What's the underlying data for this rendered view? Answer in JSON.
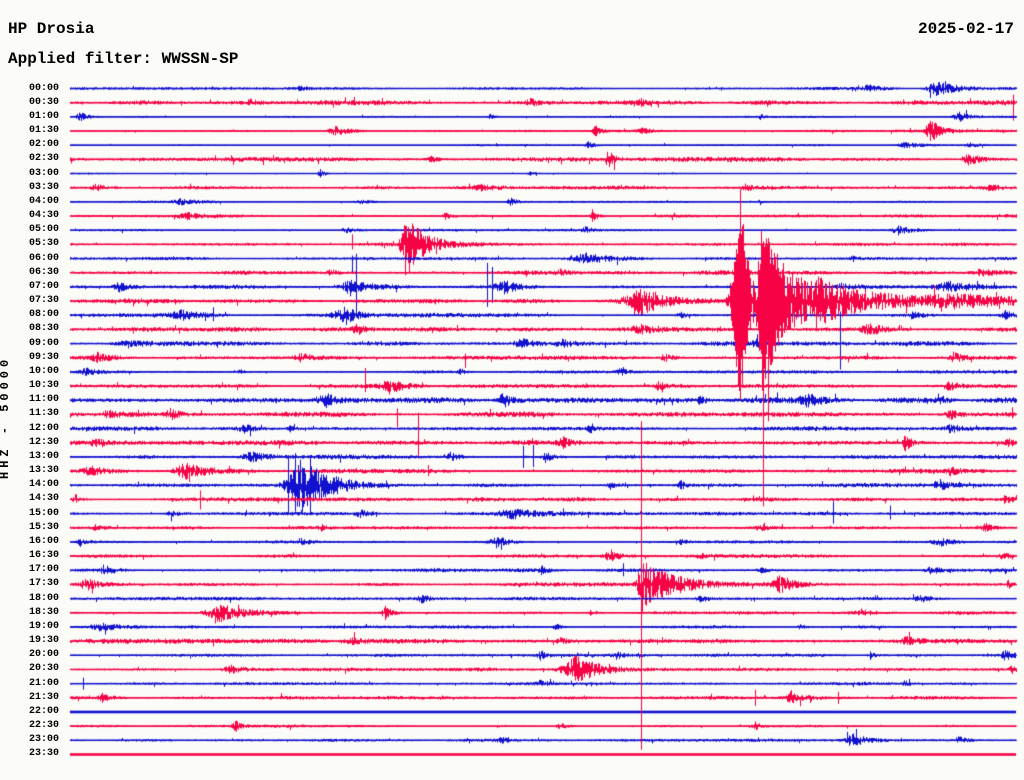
{
  "header": {
    "station": "HP Drosia",
    "date": "2025-02-17",
    "filter_label": "Applied filter: WWSSN-SP"
  },
  "y_axis_label": "HHZ - 50000",
  "colors": {
    "trace_blue": "#1111cf",
    "trace_red": "#f70345",
    "background": "#fbfbf8",
    "text": "#000000"
  },
  "chart_data": {
    "type": "line",
    "subtype": "helicorder-seismogram",
    "station": "HP Drosia",
    "date": "2025-02-17",
    "filter": "WWSSN-SP",
    "channel_scale": "HHZ - 50000",
    "minutes_per_line": 30,
    "line_color_rule": "lines starting on the hour are blue, half-hour lines are red",
    "rows": [
      {
        "time": "00:00",
        "c": "b",
        "b": 1.1,
        "e": [
          [
            300,
            6,
            2
          ],
          [
            868,
            14,
            3
          ],
          [
            935,
            18,
            8,
            22
          ]
        ]
      },
      {
        "time": "00:30",
        "c": "r",
        "b": 1.9,
        "e": [
          [
            250,
            8,
            2.5
          ],
          [
            530,
            10,
            3
          ],
          [
            640,
            6,
            2.5
          ]
        ],
        "s": [
          [
            1013,
            8,
            18
          ]
        ]
      },
      {
        "time": "01:00",
        "c": "b",
        "b": 0.8,
        "e": [
          [
            80,
            9,
            5
          ],
          [
            490,
            6,
            3
          ],
          [
            760,
            4,
            2.5
          ],
          [
            958,
            10,
            5
          ]
        ]
      },
      {
        "time": "01:30",
        "c": "r",
        "b": 1.1,
        "e": [
          [
            335,
            14,
            5,
            14
          ],
          [
            595,
            5,
            7
          ],
          [
            642,
            10,
            2.5
          ],
          [
            930,
            10,
            12,
            9
          ]
        ]
      },
      {
        "time": "02:00",
        "c": "b",
        "b": 0.8,
        "e": [
          [
            588,
            6,
            4
          ],
          [
            905,
            16,
            2.5
          ],
          [
            970,
            10,
            2
          ]
        ]
      },
      {
        "time": "02:30",
        "c": "r",
        "b": 1.7,
        "e": [
          [
            430,
            8,
            3
          ],
          [
            608,
            6,
            9
          ],
          [
            968,
            10,
            7
          ]
        ]
      },
      {
        "time": "03:00",
        "c": "b",
        "b": 0.6,
        "e": [
          [
            320,
            4,
            6
          ],
          [
            530,
            5,
            2
          ]
        ]
      },
      {
        "time": "03:30",
        "c": "r",
        "b": 1.6,
        "e": [
          [
            95,
            10,
            3
          ],
          [
            480,
            14,
            2.5
          ],
          [
            745,
            5,
            4
          ],
          [
            990,
            18,
            3
          ]
        ]
      },
      {
        "time": "04:00",
        "c": "b",
        "b": 0.9,
        "e": [
          [
            180,
            18,
            2.5
          ],
          [
            360,
            14,
            2
          ],
          [
            510,
            8,
            4
          ],
          [
            760,
            4,
            3
          ]
        ]
      },
      {
        "time": "04:30",
        "c": "r",
        "b": 1.4,
        "e": [
          [
            185,
            16,
            3
          ],
          [
            445,
            6,
            3
          ],
          [
            592,
            5,
            6
          ]
        ]
      },
      {
        "time": "05:00",
        "c": "b",
        "b": 1.0,
        "e": [
          [
            345,
            10,
            3
          ],
          [
            585,
            8,
            3
          ],
          [
            898,
            14,
            4.5
          ]
        ]
      },
      {
        "time": "05:30",
        "c": "r",
        "b": 1.5,
        "e": [
          [
            405,
            9,
            34,
            16
          ]
        ],
        "s": [
          [
            352,
            10,
            5
          ]
        ]
      },
      {
        "time": "06:00",
        "c": "b",
        "b": 1.1,
        "e": [
          [
            585,
            28,
            5
          ],
          [
            852,
            4,
            3
          ]
        ],
        "s": [
          [
            352,
            3,
            14
          ]
        ]
      },
      {
        "time": "06:30",
        "c": "r",
        "b": 1.8,
        "e": [
          [
            330,
            6,
            3
          ],
          [
            560,
            10,
            3
          ],
          [
            980,
            14,
            3.5
          ]
        ]
      },
      {
        "time": "07:00",
        "c": "b",
        "b": 1.5,
        "e": [
          [
            118,
            10,
            5
          ],
          [
            350,
            20,
            8,
            14
          ],
          [
            505,
            22,
            7,
            12
          ],
          [
            840,
            10,
            3
          ],
          [
            950,
            35,
            5
          ]
        ],
        "s": [
          [
            356,
            33,
            30
          ],
          [
            487,
            24,
            20
          ],
          [
            492,
            20,
            16
          ]
        ]
      },
      {
        "time": "07:30",
        "c": "r",
        "b": 1.9,
        "e": [
          [
            640,
            30,
            15,
            22
          ],
          [
            740,
            16,
            115,
            8
          ],
          [
            762,
            10,
            85,
            26
          ],
          [
            815,
            25,
            16,
            65
          ],
          [
            950,
            60,
            4,
            80
          ]
        ]
      },
      {
        "time": "08:00",
        "c": "b",
        "b": 1.6,
        "e": [
          [
            180,
            20,
            4
          ],
          [
            345,
            22,
            8,
            10
          ],
          [
            680,
            8,
            3
          ],
          [
            912,
            10,
            3
          ],
          [
            1005,
            8,
            4
          ]
        ],
        "s": [
          [
            213,
            8,
            6
          ]
        ]
      },
      {
        "time": "08:30",
        "c": "r",
        "b": 1.8,
        "e": [
          [
            356,
            8,
            6
          ],
          [
            640,
            28,
            4
          ],
          [
            870,
            16,
            5
          ]
        ]
      },
      {
        "time": "09:00",
        "c": "b",
        "b": 1.7,
        "e": [
          [
            130,
            30,
            3
          ],
          [
            520,
            14,
            5
          ],
          [
            560,
            10,
            4
          ],
          [
            755,
            6,
            4
          ]
        ],
        "s": [
          [
            840,
            32,
            26
          ]
        ]
      },
      {
        "time": "09:30",
        "c": "r",
        "b": 1.5,
        "e": [
          [
            97,
            14,
            4
          ],
          [
            300,
            12,
            4
          ],
          [
            664,
            8,
            5
          ],
          [
            953,
            8,
            5
          ]
        ],
        "s": [
          [
            465,
            4,
            10
          ]
        ]
      },
      {
        "time": "10:00",
        "c": "b",
        "b": 1.3,
        "e": [
          [
            85,
            10,
            3
          ],
          [
            240,
            6,
            2
          ],
          [
            460,
            6,
            2.5
          ],
          [
            620,
            8,
            3
          ]
        ]
      },
      {
        "time": "10:30",
        "c": "r",
        "b": 1.5,
        "e": [
          [
            390,
            18,
            7,
            12
          ],
          [
            658,
            6,
            4
          ],
          [
            948,
            10,
            4
          ]
        ],
        "s": [
          [
            365,
            18,
            6
          ]
        ]
      },
      {
        "time": "11:00",
        "c": "b",
        "b": 2.3,
        "e": [
          [
            325,
            16,
            7
          ],
          [
            503,
            10,
            7
          ],
          [
            700,
            6,
            4
          ],
          [
            806,
            12,
            5
          ],
          [
            940,
            8,
            4
          ]
        ]
      },
      {
        "time": "11:30",
        "c": "r",
        "b": 2.0,
        "e": [
          [
            108,
            16,
            4
          ],
          [
            170,
            12,
            5
          ],
          [
            950,
            12,
            5
          ]
        ],
        "s": [
          [
            397,
            6,
            13
          ],
          [
            1012,
            7,
            4
          ]
        ]
      },
      {
        "time": "12:00",
        "c": "b",
        "b": 1.6,
        "e": [
          [
            243,
            10,
            4
          ],
          [
            290,
            6,
            3
          ],
          [
            590,
            5,
            5
          ],
          [
            950,
            10,
            4
          ]
        ]
      },
      {
        "time": "12:30",
        "c": "r",
        "b": 1.9,
        "e": [
          [
            95,
            8,
            4
          ],
          [
            562,
            8,
            5
          ],
          [
            905,
            6,
            9
          ],
          [
            1008,
            6,
            4
          ]
        ],
        "s": [
          [
            418,
            30,
            16
          ]
        ]
      },
      {
        "time": "13:00",
        "c": "b",
        "b": 1.8,
        "e": [
          [
            250,
            18,
            5
          ],
          [
            450,
            10,
            4
          ],
          [
            545,
            8,
            5
          ]
        ],
        "s": [
          [
            523,
            11,
            11
          ],
          [
            533,
            12,
            10
          ]
        ]
      },
      {
        "time": "13:30",
        "c": "r",
        "b": 1.6,
        "e": [
          [
            90,
            16,
            4
          ],
          [
            185,
            22,
            9,
            20
          ],
          [
            950,
            8,
            3
          ]
        ],
        "s": [
          [
            428,
            6,
            5
          ]
        ]
      },
      {
        "time": "14:00",
        "c": "b",
        "b": 1.7,
        "e": [
          [
            300,
            26,
            27,
            26
          ],
          [
            610,
            8,
            4
          ],
          [
            680,
            5,
            5
          ],
          [
            938,
            8,
            6
          ]
        ],
        "s": [
          [
            288,
            30,
            29
          ],
          [
            295,
            32,
            26
          ],
          [
            310,
            28,
            30
          ]
        ]
      },
      {
        "time": "14:30",
        "c": "r",
        "b": 1.5,
        "e": [
          [
            75,
            6,
            5
          ],
          [
            1005,
            6,
            5
          ]
        ],
        "s": [
          [
            200,
            9,
            10
          ]
        ]
      },
      {
        "time": "15:00",
        "c": "b",
        "b": 1.4,
        "e": [
          [
            170,
            10,
            3
          ],
          [
            360,
            12,
            4
          ],
          [
            512,
            28,
            5
          ]
        ],
        "s": [
          [
            833,
            12,
            10
          ],
          [
            890,
            8,
            6
          ]
        ]
      },
      {
        "time": "15:30",
        "c": "r",
        "b": 1.2,
        "e": [
          [
            95,
            10,
            3
          ],
          [
            320,
            6,
            3
          ],
          [
            760,
            8,
            3
          ],
          [
            985,
            8,
            4
          ]
        ]
      },
      {
        "time": "16:00",
        "c": "b",
        "b": 1.2,
        "e": [
          [
            80,
            6,
            4
          ],
          [
            300,
            8,
            3
          ],
          [
            497,
            16,
            6,
            9
          ],
          [
            680,
            6,
            3
          ],
          [
            940,
            18,
            4
          ]
        ]
      },
      {
        "time": "16:30",
        "c": "r",
        "b": 1.4,
        "e": [
          [
            610,
            12,
            6,
            8
          ],
          [
            700,
            6,
            3
          ],
          [
            1002,
            5,
            5
          ]
        ]
      },
      {
        "time": "17:00",
        "c": "b",
        "b": 1.4,
        "e": [
          [
            105,
            12,
            4
          ],
          [
            540,
            6,
            4
          ],
          [
            760,
            8,
            3
          ],
          [
            930,
            10,
            4
          ]
        ],
        "s": [
          [
            623,
            7,
            6
          ]
        ]
      },
      {
        "time": "17:30",
        "c": "r",
        "b": 1.5,
        "e": [
          [
            85,
            11,
            6,
            9
          ],
          [
            641,
            9,
            26,
            30
          ],
          [
            780,
            13,
            10,
            11
          ],
          [
            1008,
            4,
            5
          ]
        ],
        "s": [
          [
            641,
            163,
            165
          ]
        ]
      },
      {
        "time": "18:00",
        "c": "b",
        "b": 1.3,
        "e": [
          [
            420,
            5,
            6
          ],
          [
            700,
            10,
            3
          ],
          [
            920,
            12,
            4
          ]
        ]
      },
      {
        "time": "18:30",
        "c": "r",
        "b": 1.4,
        "e": [
          [
            218,
            24,
            9,
            22
          ],
          [
            385,
            8,
            7
          ],
          [
            590,
            6,
            3
          ],
          [
            860,
            8,
            3
          ]
        ]
      },
      {
        "time": "19:00",
        "c": "b",
        "b": 1.2,
        "e": [
          [
            100,
            22,
            3.5
          ],
          [
            555,
            5,
            4
          ],
          [
            800,
            6,
            3
          ]
        ]
      },
      {
        "time": "19:30",
        "c": "r",
        "b": 1.7,
        "e": [
          [
            350,
            10,
            3
          ],
          [
            560,
            8,
            3
          ],
          [
            905,
            10,
            4
          ]
        ]
      },
      {
        "time": "20:00",
        "c": "b",
        "b": 1.4,
        "e": [
          [
            540,
            5,
            5
          ],
          [
            615,
            6,
            4
          ],
          [
            870,
            5,
            4
          ],
          [
            1005,
            10,
            5
          ]
        ]
      },
      {
        "time": "20:30",
        "c": "r",
        "b": 1.4,
        "e": [
          [
            230,
            12,
            4
          ],
          [
            575,
            26,
            13,
            26
          ],
          [
            1010,
            4,
            6
          ]
        ]
      },
      {
        "time": "21:00",
        "c": "b",
        "b": 1.3,
        "e": [
          [
            540,
            8,
            3
          ],
          [
            905,
            5,
            4
          ]
        ],
        "s": [
          [
            83,
            6,
            6
          ]
        ]
      },
      {
        "time": "21:30",
        "c": "r",
        "b": 1.5,
        "e": [
          [
            102,
            10,
            4
          ],
          [
            790,
            10,
            5
          ]
        ],
        "s": [
          [
            755,
            8,
            8
          ],
          [
            838,
            6,
            6
          ]
        ]
      },
      {
        "time": "22:00",
        "c": "b",
        "b": 0,
        "flat": true
      },
      {
        "time": "22:30",
        "c": "r",
        "b": 1.1,
        "e": [
          [
            235,
            5,
            5
          ],
          [
            560,
            8,
            3
          ],
          [
            755,
            6,
            4
          ]
        ]
      },
      {
        "time": "23:00",
        "c": "b",
        "b": 1.2,
        "e": [
          [
            500,
            6,
            3
          ],
          [
            852,
            12,
            7
          ],
          [
            960,
            8,
            3
          ]
        ]
      },
      {
        "time": "23:30",
        "c": "r",
        "b": 0,
        "flat": true
      }
    ]
  }
}
